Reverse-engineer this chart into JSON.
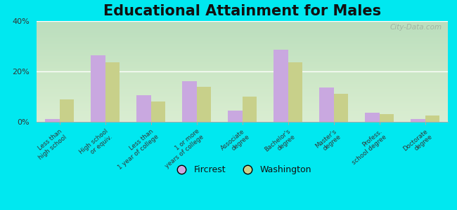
{
  "title": "Educational Attainment for Males",
  "categories": [
    "Less than\nhigh school",
    "High school\nor equiv.",
    "Less than\n1 year of college",
    "1 or more\nyears of college",
    "Associate\ndegree",
    "Bachelor's\ndegree",
    "Master's\ndegree",
    "Profess.\nschool degree",
    "Doctorate\ndegree"
  ],
  "fircrest": [
    1.0,
    26.5,
    10.5,
    16.0,
    4.5,
    28.5,
    13.5,
    3.5,
    1.0
  ],
  "washington": [
    9.0,
    23.5,
    8.0,
    14.0,
    10.0,
    23.5,
    11.0,
    3.0,
    2.5
  ],
  "fircrest_color": "#c9a8e0",
  "washington_color": "#c8d08a",
  "background_top": "#d0e8c0",
  "background_bottom": "#f0f5e8",
  "outer_background": "#00e8f0",
  "ylim": [
    0,
    40
  ],
  "yticks": [
    0,
    20,
    40
  ],
  "ytick_labels": [
    "0%",
    "20%",
    "40%"
  ],
  "bar_width": 0.32,
  "title_fontsize": 15,
  "legend_labels": [
    "Fircrest",
    "Washington"
  ],
  "watermark": "City-Data.com"
}
